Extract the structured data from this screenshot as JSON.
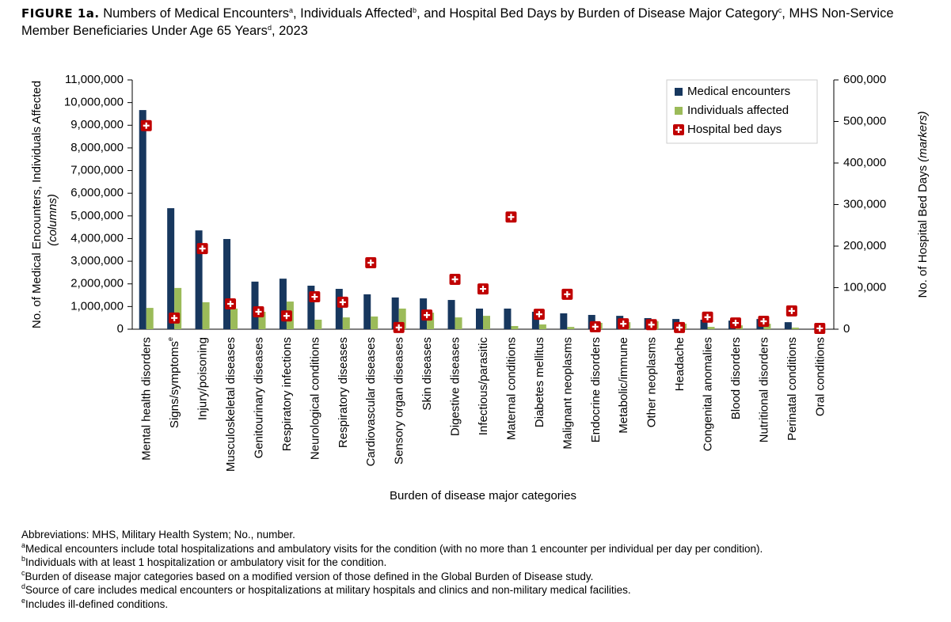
{
  "chart_data": {
    "type": "bar",
    "title": {
      "label": "FIGURE 1a.",
      "parts": [
        "Numbers of Medical Encounters",
        "a",
        ", Individuals Affected",
        "b",
        ", and Hospital Bed Days by Burden of Disease Major Category",
        "c",
        ", MHS Non-Service Member Beneficiaries Under Age 65 Years",
        "d",
        ", 2023"
      ]
    },
    "y_label": [
      "No. of Medical Encounters, Individuals Affected",
      "(columns)"
    ],
    "y2_label": [
      "No. of Hospital Bed Days",
      "(markers)"
    ],
    "x_label": "Burden of disease major categories",
    "categories": [
      "Mental health disorders",
      "Signs/symptoms",
      "Injury/poisoning",
      "Musculoskeletal diseases",
      "Genitourinary diseases",
      "Respiratory infections",
      "Neurological conditions",
      "Respiratory diseases",
      "Cardiovascular diseases",
      "Sensory organ diseases",
      "Skin diseases",
      "Digestive diseases",
      "Infectious/parasitic",
      "Maternal conditions",
      "Diabetes mellitus",
      "Malignant neoplasms",
      "Endocrine disorders",
      "Metabolic/immune",
      "Other neoplasms",
      "Headache",
      "Congenital anomalies",
      "Blood disorders",
      "Nutritional disorders",
      "Perinatal conditions",
      "Oral conditions"
    ],
    "category_superscripts": [
      null,
      "e",
      null,
      null,
      null,
      null,
      null,
      null,
      null,
      null,
      null,
      null,
      null,
      null,
      null,
      null,
      null,
      null,
      null,
      null,
      null,
      null,
      null,
      null,
      null
    ],
    "series": [
      {
        "name": "Medical encounters",
        "color": "#17375e",
        "values": [
          9670000,
          5340000,
          4360000,
          3980000,
          2100000,
          2230000,
          1920000,
          1780000,
          1540000,
          1400000,
          1360000,
          1290000,
          910000,
          910000,
          770000,
          700000,
          630000,
          590000,
          490000,
          450000,
          420000,
          380000,
          450000,
          310000,
          30000
        ]
      },
      {
        "name": "Individuals affected",
        "color": "#9bbb59",
        "values": [
          940000,
          1820000,
          1190000,
          910000,
          770000,
          1220000,
          420000,
          520000,
          560000,
          910000,
          730000,
          520000,
          590000,
          140000,
          210000,
          100000,
          280000,
          310000,
          350000,
          240000,
          100000,
          170000,
          240000,
          70000,
          10000
        ]
      },
      {
        "name": "Hospital bed days",
        "color": "#c00000",
        "axis": "y2",
        "values": [
          490000,
          27000,
          194000,
          61000,
          42000,
          32000,
          78000,
          65000,
          160000,
          4000,
          34000,
          120000,
          97000,
          270000,
          36000,
          84000,
          6000,
          13000,
          11000,
          4000,
          29000,
          15000,
          19000,
          44000,
          2000
        ]
      }
    ],
    "ylim": [
      0,
      11000000
    ],
    "yticks": [
      0,
      {
        "value": 1000000,
        "label": "1,000,000"
      },
      {
        "value": 2000000,
        "label": "2,000,000"
      },
      {
        "value": 3000000,
        "label": "3,000,000"
      },
      {
        "value": 4000000,
        "label": "4,000,000"
      },
      {
        "value": 5000000,
        "label": "5,000,000"
      },
      {
        "value": 6000000,
        "label": "6,000,000"
      },
      {
        "value": 7000000,
        "label": "7,000,000"
      },
      {
        "value": 8000000,
        "label": "8,000,000"
      },
      {
        "value": 9000000,
        "label": "9,000,000"
      },
      {
        "value": 10000000,
        "label": "10,000,000"
      },
      {
        "value": 11000000,
        "label": "11,000,000"
      }
    ],
    "y2lim": [
      0,
      600000
    ],
    "y2ticks": [
      0,
      {
        "value": 100000,
        "label": "100,000"
      },
      {
        "value": 200000,
        "label": "200,000"
      },
      {
        "value": 300000,
        "label": "300,000"
      },
      {
        "value": 400000,
        "label": "400,000"
      },
      {
        "value": 500000,
        "label": "500,000"
      },
      {
        "value": 600000,
        "label": "600,000"
      }
    ],
    "legend": "top-right",
    "notes": [
      {
        "text": "Abbreviations: MHS, Military Health System; No., number."
      },
      {
        "mark": "a",
        "text": "Medical encounters include total hospitalizations and ambulatory visits for the condition (with no more than 1 encounter per individual per day per condition)."
      },
      {
        "mark": "b",
        "text": "Individuals with at least 1 hospitalization or ambulatory visit for the condition."
      },
      {
        "mark": "c",
        "text": "Burden of disease major categories based on a modified version of those defined in the Global Burden of Disease study."
      },
      {
        "mark": "d",
        "text": "Source of care includes medical encounters or hospitalizations at military hospitals and clinics and non-military medical facilities."
      },
      {
        "mark": "e",
        "text": "Includes ill-defined conditions."
      }
    ]
  }
}
